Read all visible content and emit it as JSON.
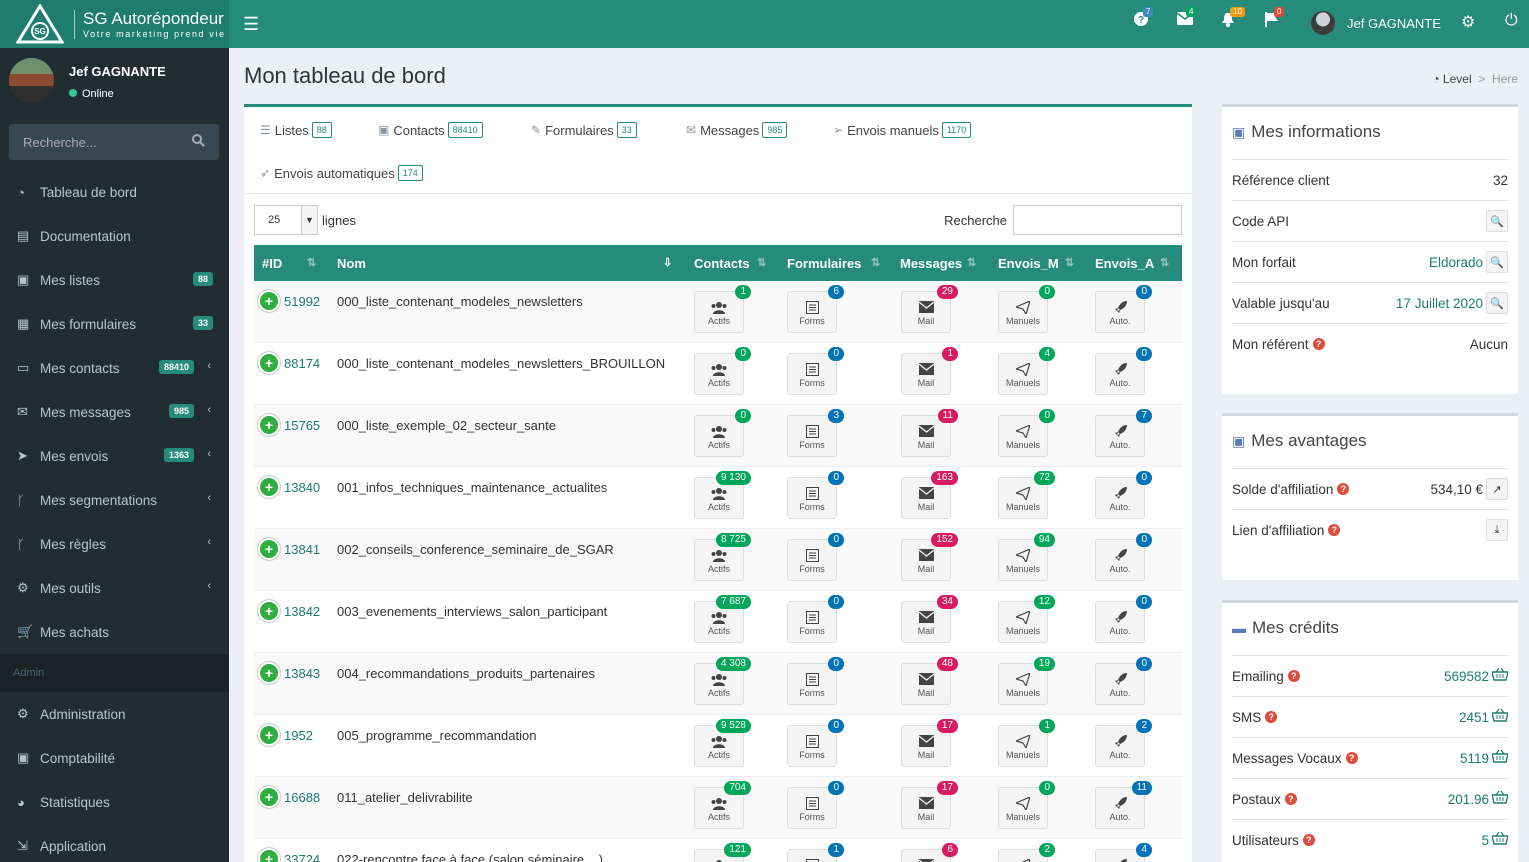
{
  "brand": {
    "title": "SG Autorépondeur",
    "tagline": "Votre marketing prend vie"
  },
  "topbar": {
    "badges": [
      {
        "icon": "question-icon",
        "count": "7",
        "color": "#3c8dbc"
      },
      {
        "icon": "envelope-icon",
        "count": "4",
        "color": "#00a65a"
      },
      {
        "icon": "bell-icon",
        "count": "10",
        "color": "#f39c12"
      },
      {
        "icon": "flag-icon",
        "count": "0",
        "color": "#dd4b39"
      }
    ],
    "user": "Jef GAGNANTE"
  },
  "sidebar": {
    "user": "Jef GAGNANTE",
    "status": "Online",
    "search_placeholder": "Recherche...",
    "items": [
      {
        "label": "Tableau de bord"
      },
      {
        "label": "Documentation"
      },
      {
        "label": "Mes listes",
        "badge": "88"
      },
      {
        "label": "Mes formulaires",
        "badge": "33"
      },
      {
        "label": "Mes contacts",
        "badge": "88410"
      },
      {
        "label": "Mes messages",
        "badge": "985"
      },
      {
        "label": "Mes envois",
        "badge": "1363"
      },
      {
        "label": "Mes segmentations"
      },
      {
        "label": "Mes règles"
      },
      {
        "label": "Mes outils"
      },
      {
        "label": "Mes achats"
      }
    ],
    "admin_header": "Admin",
    "admin_items": [
      {
        "label": "Administration"
      },
      {
        "label": "Comptabilité"
      },
      {
        "label": "Statistiques"
      },
      {
        "label": "Application"
      }
    ]
  },
  "page": {
    "title": "Mon tableau de bord",
    "breadcrumb": [
      "Level",
      "Here"
    ]
  },
  "tabs": [
    {
      "label": "Listes",
      "count": "88"
    },
    {
      "label": "Contacts",
      "count": "88410"
    },
    {
      "label": "Formulaires",
      "count": "33"
    },
    {
      "label": "Messages",
      "count": "985"
    },
    {
      "label": "Envois manuels",
      "count": "1170"
    },
    {
      "label": "Envois automatiques",
      "count": "174"
    }
  ],
  "table": {
    "length_value": "25",
    "length_label": "lignes",
    "search_label": "Recherche",
    "columns": [
      "#ID",
      "Nom",
      "Contacts",
      "Formulaires",
      "Messages",
      "Envois_M",
      "Envois_A"
    ],
    "button_labels": [
      "Actifs",
      "Forms",
      "Mail",
      "Manuels",
      "Auto."
    ],
    "rows": [
      {
        "id": "51992",
        "name": "000_liste_contenant_modeles_newsletters",
        "c": [
          "1",
          "6",
          "29",
          "0",
          "0"
        ]
      },
      {
        "id": "88174",
        "name": "000_liste_contenant_modeles_newsletters_BROUILLON",
        "c": [
          "0",
          "0",
          "1",
          "4",
          "0"
        ]
      },
      {
        "id": "15765",
        "name": "000_liste_exemple_02_secteur_sante",
        "c": [
          "0",
          "3",
          "11",
          "0",
          "7"
        ]
      },
      {
        "id": "13840",
        "name": "001_infos_techniques_maintenance_actualites",
        "c": [
          "9 130",
          "0",
          "163",
          "72",
          "0"
        ]
      },
      {
        "id": "13841",
        "name": "002_conseils_conference_seminaire_de_SGAR",
        "c": [
          "8 725",
          "0",
          "152",
          "94",
          "0"
        ]
      },
      {
        "id": "13842",
        "name": "003_evenements_interviews_salon_participant",
        "c": [
          "7 687",
          "0",
          "34",
          "12",
          "0"
        ]
      },
      {
        "id": "13843",
        "name": "004_recommandations_produits_partenaires",
        "c": [
          "4 308",
          "0",
          "48",
          "19",
          "0"
        ]
      },
      {
        "id": "1952",
        "name": "005_programme_recommandation",
        "c": [
          "9 528",
          "0",
          "17",
          "1",
          "2"
        ]
      },
      {
        "id": "16688",
        "name": "011_atelier_delivrabilite",
        "c": [
          "704",
          "0",
          "17",
          "0",
          "11"
        ]
      },
      {
        "id": "33724",
        "name": "022-rencontre face à face (salon,séminaire,...)",
        "c": [
          "121",
          "1",
          "6",
          "2",
          "4"
        ]
      }
    ]
  },
  "info": {
    "title": "Mes informations",
    "ref_label": "Référence client",
    "ref_value": "32",
    "api_label": "Code API",
    "plan_label": "Mon forfait",
    "plan_value": "Eldorado",
    "valid_label": "Valable jusqu'au",
    "valid_value": "17 Juillet 2020",
    "referrer_label": "Mon référent",
    "referrer_value": "Aucun"
  },
  "advantages": {
    "title": "Mes avantages",
    "balance_label": "Solde d'affiliation",
    "balance_value": "534,10 €",
    "link_label": "Lien d'affiliation"
  },
  "credits": {
    "title": "Mes crédits",
    "items": [
      {
        "label": "Emailing",
        "value": "569582"
      },
      {
        "label": "SMS",
        "value": "2451"
      },
      {
        "label": "Messages Vocaux",
        "value": "5119"
      },
      {
        "label": "Postaux",
        "value": "201.96"
      },
      {
        "label": "Utilisateurs",
        "value": "5"
      }
    ]
  }
}
